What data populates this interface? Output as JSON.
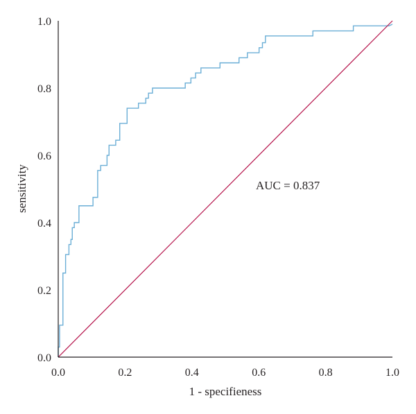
{
  "chart_data": {
    "type": "line",
    "title": "",
    "xlabel": "1 - specifieness",
    "ylabel": "sensitivity",
    "xlim": [
      0,
      1
    ],
    "ylim": [
      0,
      1
    ],
    "x_ticks": [
      "0.0",
      "0.2",
      "0.4",
      "0.6",
      "0.8",
      "1.0"
    ],
    "y_ticks": [
      "0.0",
      "0.2",
      "0.4",
      "0.6",
      "0.8",
      "1.0"
    ],
    "grid": false,
    "legend": "none",
    "annotation": "AUC = 0.837",
    "colors": {
      "roc": "#6aaed6",
      "diagonal": "#b5124a",
      "axis": "#231f20"
    },
    "series": [
      {
        "role": "roc",
        "points": [
          [
            0.0,
            0.0
          ],
          [
            0.0,
            0.03
          ],
          [
            0.004,
            0.03
          ],
          [
            0.004,
            0.095
          ],
          [
            0.014,
            0.095
          ],
          [
            0.014,
            0.25
          ],
          [
            0.022,
            0.25
          ],
          [
            0.022,
            0.305
          ],
          [
            0.032,
            0.305
          ],
          [
            0.032,
            0.335
          ],
          [
            0.038,
            0.335
          ],
          [
            0.038,
            0.35
          ],
          [
            0.042,
            0.35
          ],
          [
            0.042,
            0.385
          ],
          [
            0.048,
            0.385
          ],
          [
            0.048,
            0.4
          ],
          [
            0.062,
            0.4
          ],
          [
            0.062,
            0.45
          ],
          [
            0.104,
            0.45
          ],
          [
            0.104,
            0.475
          ],
          [
            0.118,
            0.475
          ],
          [
            0.118,
            0.555
          ],
          [
            0.127,
            0.555
          ],
          [
            0.127,
            0.57
          ],
          [
            0.146,
            0.57
          ],
          [
            0.146,
            0.6
          ],
          [
            0.152,
            0.6
          ],
          [
            0.152,
            0.63
          ],
          [
            0.172,
            0.63
          ],
          [
            0.172,
            0.645
          ],
          [
            0.184,
            0.645
          ],
          [
            0.184,
            0.695
          ],
          [
            0.206,
            0.695
          ],
          [
            0.206,
            0.74
          ],
          [
            0.24,
            0.74
          ],
          [
            0.24,
            0.755
          ],
          [
            0.262,
            0.755
          ],
          [
            0.262,
            0.77
          ],
          [
            0.27,
            0.77
          ],
          [
            0.27,
            0.785
          ],
          [
            0.282,
            0.785
          ],
          [
            0.282,
            0.8
          ],
          [
            0.38,
            0.8
          ],
          [
            0.38,
            0.815
          ],
          [
            0.397,
            0.815
          ],
          [
            0.397,
            0.83
          ],
          [
            0.411,
            0.83
          ],
          [
            0.411,
            0.845
          ],
          [
            0.427,
            0.845
          ],
          [
            0.427,
            0.86
          ],
          [
            0.484,
            0.86
          ],
          [
            0.484,
            0.875
          ],
          [
            0.541,
            0.875
          ],
          [
            0.541,
            0.89
          ],
          [
            0.566,
            0.89
          ],
          [
            0.566,
            0.905
          ],
          [
            0.601,
            0.905
          ],
          [
            0.601,
            0.92
          ],
          [
            0.611,
            0.92
          ],
          [
            0.611,
            0.935
          ],
          [
            0.62,
            0.935
          ],
          [
            0.62,
            0.955
          ],
          [
            0.762,
            0.955
          ],
          [
            0.762,
            0.97
          ],
          [
            0.883,
            0.97
          ],
          [
            0.883,
            0.985
          ],
          [
            0.99,
            0.985
          ],
          [
            1.0,
            0.99
          ]
        ]
      },
      {
        "role": "diagonal",
        "points": [
          [
            0,
            0
          ],
          [
            1,
            1
          ]
        ]
      }
    ]
  }
}
